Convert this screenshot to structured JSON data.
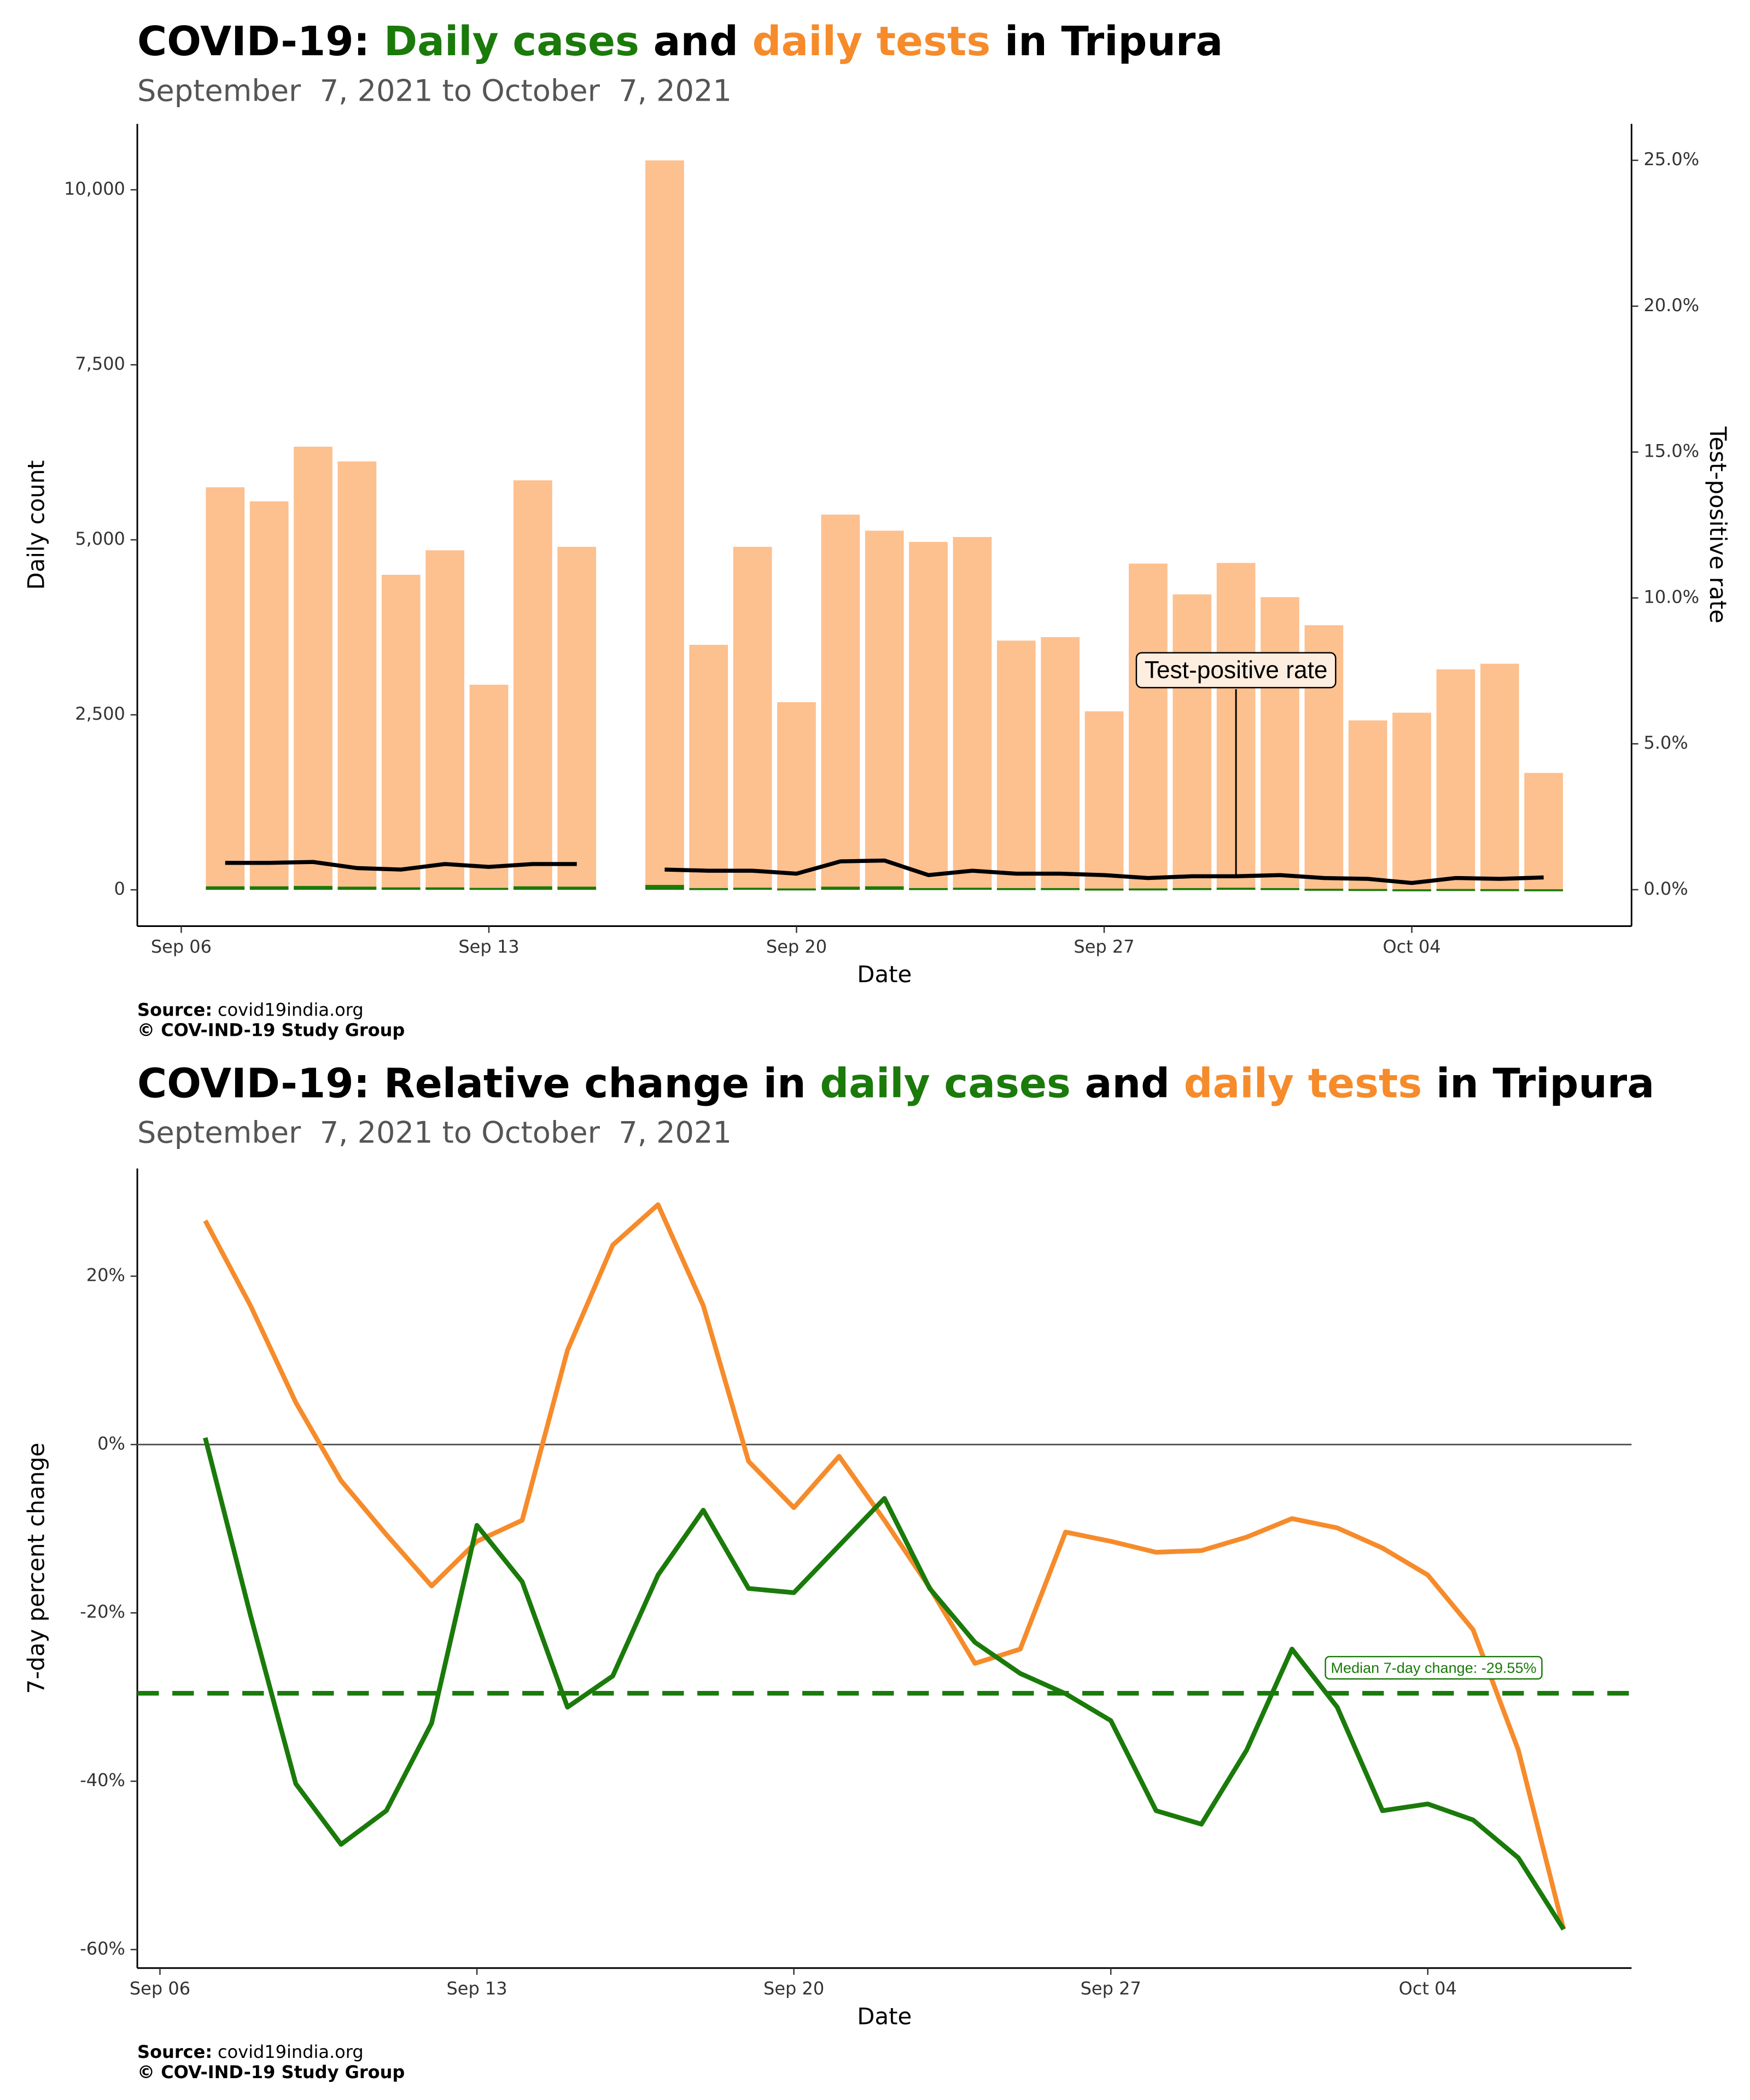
{
  "chart_data": [
    {
      "type": "bar",
      "title": [
        "COVID-19: ",
        "Daily cases",
        " and ",
        "daily tests",
        " in Tripura"
      ],
      "title_colors": [
        "#000000",
        "#1a7a0a",
        "#000000",
        "#f68b2b",
        "#000000"
      ],
      "subtitle": "September  7, 2021 to October  7, 2021",
      "x_label": "Date",
      "y_label": "Daily count",
      "y2_label": "Test-positive rate",
      "x": [
        "2021-09-07",
        "2021-09-08",
        "2021-09-09",
        "2021-09-10",
        "2021-09-11",
        "2021-09-12",
        "2021-09-13",
        "2021-09-14",
        "2021-09-15",
        "2021-09-16",
        "2021-09-17",
        "2021-09-18",
        "2021-09-19",
        "2021-09-20",
        "2021-09-21",
        "2021-09-22",
        "2021-09-23",
        "2021-09-24",
        "2021-09-25",
        "2021-09-26",
        "2021-09-27",
        "2021-09-28",
        "2021-09-29",
        "2021-09-30",
        "2021-10-01",
        "2021-10-02",
        "2021-10-03",
        "2021-10-04",
        "2021-10-05",
        "2021-10-06",
        "2021-10-07"
      ],
      "series": [
        {
          "color": "#1a7a0a",
          "values": [
            50,
            50,
            55,
            45,
            35,
            35,
            28,
            50,
            45,
            null,
            70,
            25,
            30,
            20,
            45,
            50,
            25,
            30,
            25,
            25,
            18,
            20,
            25,
            30,
            25,
            15,
            12,
            8,
            12,
            10,
            8
          ]
        },
        {
          "color": "#fdc08f",
          "values": [
            5750,
            5550,
            6330,
            6120,
            4500,
            4850,
            2930,
            5850,
            4900,
            null,
            10420,
            3500,
            4900,
            2680,
            5360,
            5130,
            4970,
            5040,
            3560,
            3610,
            2550,
            4660,
            4220,
            4670,
            4180,
            3780,
            2420,
            2530,
            3150,
            3230,
            1670
          ]
        },
        {
          "type": "line",
          "axis": "y2",
          "color": "#000000",
          "values": [
            0.92,
            0.92,
            0.95,
            0.74,
            0.69,
            0.88,
            0.78,
            0.88,
            0.88,
            null,
            0.69,
            0.65,
            0.65,
            0.55,
            0.97,
            1.0,
            0.5,
            0.65,
            0.55,
            0.55,
            0.5,
            0.4,
            0.46,
            0.46,
            0.5,
            0.4,
            0.37,
            0.23,
            0.4,
            0.37,
            0.42
          ]
        }
      ],
      "annotation": "Test-positive rate",
      "annotation_x": "2021-09-30",
      "xlim": [
        "2021-09-05",
        "2021-10-09"
      ],
      "xticks": [
        {
          "value": "2021-09-06",
          "label": "Sep 06"
        },
        {
          "value": "2021-09-13",
          "label": "Sep 13"
        },
        {
          "value": "2021-09-20",
          "label": "Sep 20"
        },
        {
          "value": "2021-09-27",
          "label": "Sep 27"
        },
        {
          "value": "2021-10-04",
          "label": "Oct 04"
        }
      ],
      "ylim": [
        -519,
        10942
      ],
      "yticks": [
        0,
        {
          "value": 2500,
          "label": "2,500"
        },
        {
          "value": 5000,
          "label": "5,000"
        },
        {
          "value": 7500,
          "label": "7,500"
        },
        {
          "value": 10000,
          "label": "10,000"
        }
      ],
      "y2lim": [
        -1.25,
        26.25
      ],
      "y2ticks": [
        {
          "value": 0,
          "label": "0.0%"
        },
        {
          "value": 5,
          "label": "5.0%"
        },
        {
          "value": 10,
          "label": "10.0%"
        },
        {
          "value": 15,
          "label": "15.0%"
        },
        {
          "value": 20,
          "label": "20.0%"
        },
        {
          "value": 25,
          "label": "25.0%"
        }
      ],
      "source_label": "Source:",
      "source": "covid19india.org",
      "credit": "© COV-IND-19 Study Group"
    },
    {
      "type": "line",
      "title": [
        "COVID-19: Relative change in ",
        "daily cases",
        " and ",
        "daily tests",
        " in Tripura"
      ],
      "title_colors": [
        "#000000",
        "#1a7a0a",
        "#000000",
        "#f68b2b",
        "#000000"
      ],
      "subtitle": "September  7, 2021 to October  7, 2021",
      "x_label": "Date",
      "y_label": "7-day percent change",
      "x": [
        "2021-09-07",
        "2021-09-08",
        "2021-09-09",
        "2021-09-10",
        "2021-09-11",
        "2021-09-12",
        "2021-09-13",
        "2021-09-14",
        "2021-09-15",
        "2021-09-16",
        "2021-09-17",
        "2021-09-18",
        "2021-09-19",
        "2021-09-20",
        "2021-09-21",
        "2021-09-22",
        "2021-09-23",
        "2021-09-24",
        "2021-09-25",
        "2021-09-26",
        "2021-09-27",
        "2021-09-28",
        "2021-09-29",
        "2021-09-30",
        "2021-10-01",
        "2021-10-02",
        "2021-10-03",
        "2021-10-04",
        "2021-10-05",
        "2021-10-06",
        "2021-10-07"
      ],
      "series": [
        {
          "color": "#f68b2b",
          "values": [
            26.6,
            16.5,
            5.0,
            -4.3,
            -10.7,
            -16.8,
            -11.5,
            -9.0,
            11.2,
            23.7,
            28.5,
            16.5,
            -2.0,
            -7.5,
            -1.4,
            -9.0,
            -17.0,
            -26.0,
            -24.3,
            -10.4,
            -11.5,
            -12.8,
            -12.6,
            -11.0,
            -8.8,
            -9.9,
            -12.3,
            -15.5,
            -22.0,
            -36.3,
            -57.6
          ]
        },
        {
          "color": "#1a7a0a",
          "values": [
            0.8,
            -20.3,
            -40.3,
            -47.5,
            -43.5,
            -33.1,
            -9.6,
            -16.3,
            -31.2,
            -27.5,
            -15.5,
            -7.8,
            -17.1,
            -17.6,
            -12.0,
            -6.4,
            -17.1,
            -23.5,
            -27.2,
            -29.6,
            -32.8,
            -43.5,
            -45.1,
            -36.3,
            -24.3,
            -31.2,
            -43.5,
            -42.7,
            -44.6,
            -49.1,
            -57.6
          ]
        }
      ],
      "median": {
        "value": -29.55,
        "label": "Median 7-day change: -29.55%",
        "color": "#1a7a0a"
      },
      "zero_line": true,
      "xlim": [
        "2021-09-05T12:00",
        "2021-10-08T12:00"
      ],
      "xticks": [
        {
          "value": "2021-09-06",
          "label": "Sep 06"
        },
        {
          "value": "2021-09-13",
          "label": "Sep 13"
        },
        {
          "value": "2021-09-20",
          "label": "Sep 20"
        },
        {
          "value": "2021-09-27",
          "label": "Sep 27"
        },
        {
          "value": "2021-10-04",
          "label": "Oct 04"
        }
      ],
      "ylim": [
        -62.2,
        32.8
      ],
      "yticks": [
        {
          "value": -60,
          "label": "-60%"
        },
        {
          "value": -40,
          "label": "-40%"
        },
        {
          "value": -20,
          "label": "-20%"
        },
        {
          "value": 0,
          "label": "0%"
        },
        {
          "value": 20,
          "label": "20%"
        }
      ],
      "source_label": "Source:",
      "source": "covid19india.org",
      "credit": "© COV-IND-19 Study Group"
    }
  ]
}
